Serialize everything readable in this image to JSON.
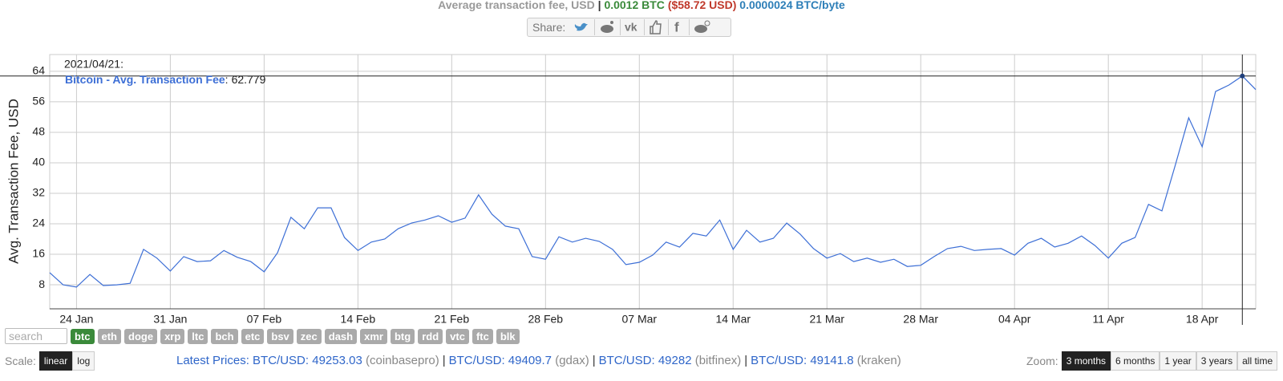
{
  "header": {
    "title": "Average transaction fee, USD",
    "separator": "|",
    "btc": "0.0012 BTC",
    "usd": "($58.72 USD)",
    "per_byte": "0.0000024 BTC/byte"
  },
  "share": {
    "label": "Share:"
  },
  "chart_data": {
    "type": "line",
    "ylabel": "Avg. Transaction Fee, USD",
    "categories": [
      null,
      null,
      "24 Jan",
      null,
      null,
      null,
      null,
      null,
      null,
      "31 Jan",
      null,
      null,
      null,
      null,
      null,
      null,
      "07 Feb",
      null,
      null,
      null,
      null,
      null,
      null,
      "14 Feb",
      null,
      null,
      null,
      null,
      null,
      null,
      "21 Feb",
      null,
      null,
      null,
      null,
      null,
      null,
      "28 Feb",
      null,
      null,
      null,
      null,
      null,
      null,
      "07 Mar",
      null,
      null,
      null,
      null,
      null,
      null,
      "14 Mar",
      null,
      null,
      null,
      null,
      null,
      null,
      "21 Mar",
      null,
      null,
      null,
      null,
      null,
      null,
      "28 Mar",
      null,
      null,
      null,
      null,
      null,
      null,
      "04 Apr",
      null,
      null,
      null,
      null,
      null,
      null,
      "11 Apr",
      null,
      null,
      null,
      null,
      null,
      null,
      "18 Apr",
      null,
      null,
      null,
      null
    ],
    "series": [
      {
        "name": "Bitcoin - Avg. Transaction Fee",
        "color": "#3d6fd6",
        "values": [
          11.2,
          8,
          7.4,
          10.7,
          7.8,
          8,
          8.4,
          17.3,
          15,
          11.6,
          15.4,
          14.1,
          14.3,
          17,
          15.2,
          14.1,
          11.4,
          16.4,
          25.7,
          22.7,
          28.2,
          28.2,
          20.4,
          17,
          19.2,
          20,
          22.7,
          24.2,
          25,
          26.1,
          24.4,
          25.5,
          31.6,
          26.5,
          23.4,
          22.7,
          15.4,
          14.7,
          20.6,
          19.2,
          20.2,
          19.4,
          17.3,
          13.3,
          13.9,
          15.8,
          19.2,
          17.9,
          21.5,
          20.8,
          25,
          17.3,
          22.3,
          19.2,
          20.2,
          24.2,
          21.3,
          17.5,
          15,
          16.2,
          14.1,
          15,
          13.9,
          14.7,
          12.8,
          13.1,
          15.4,
          17.5,
          18.1,
          17,
          17.3,
          17.5,
          15.8,
          18.9,
          20.2,
          17.9,
          18.9,
          20.8,
          18.3,
          15,
          18.9,
          20.4,
          29.1,
          27.4,
          39.4,
          51.8,
          44.2,
          58.7,
          60.4,
          62.779,
          59.2
        ]
      }
    ],
    "ylim": [
      1.7,
      68.4
    ],
    "yticks": [
      8,
      16,
      24,
      32,
      40,
      48,
      56,
      64
    ],
    "grid": true,
    "tooltip": {
      "index": 89,
      "date": "2021/04/21:",
      "separator": ":",
      "value": 62.779
    }
  },
  "coins": {
    "search": "search",
    "active": 0,
    "items": [
      "btc",
      "eth",
      "doge",
      "xrp",
      "ltc",
      "bch",
      "etc",
      "bsv",
      "zec",
      "dash",
      "xmr",
      "btg",
      "rdd",
      "vtc",
      "ftc",
      "blk"
    ]
  },
  "scale": {
    "label": "Scale:",
    "active": 0,
    "options": [
      "linear",
      "log"
    ]
  },
  "prices": {
    "label": "Latest Prices:",
    "separator": "|",
    "items": [
      {
        "pair": "BTC/USD:",
        "price": 49253.03,
        "source": "(coinbasepro)"
      },
      {
        "pair": "BTC/USD:",
        "price": 49409.7,
        "source": "(gdax)"
      },
      {
        "pair": "BTC/USD:",
        "price": 49282,
        "source": "(bitfinex)"
      },
      {
        "pair": "BTC/USD:",
        "price": 49141.8,
        "source": "(kraken)"
      }
    ]
  },
  "zoom": {
    "label": "Zoom:",
    "active": 0,
    "options": [
      "3 months",
      "6 months",
      "1 year",
      "3 years",
      "all time"
    ]
  }
}
